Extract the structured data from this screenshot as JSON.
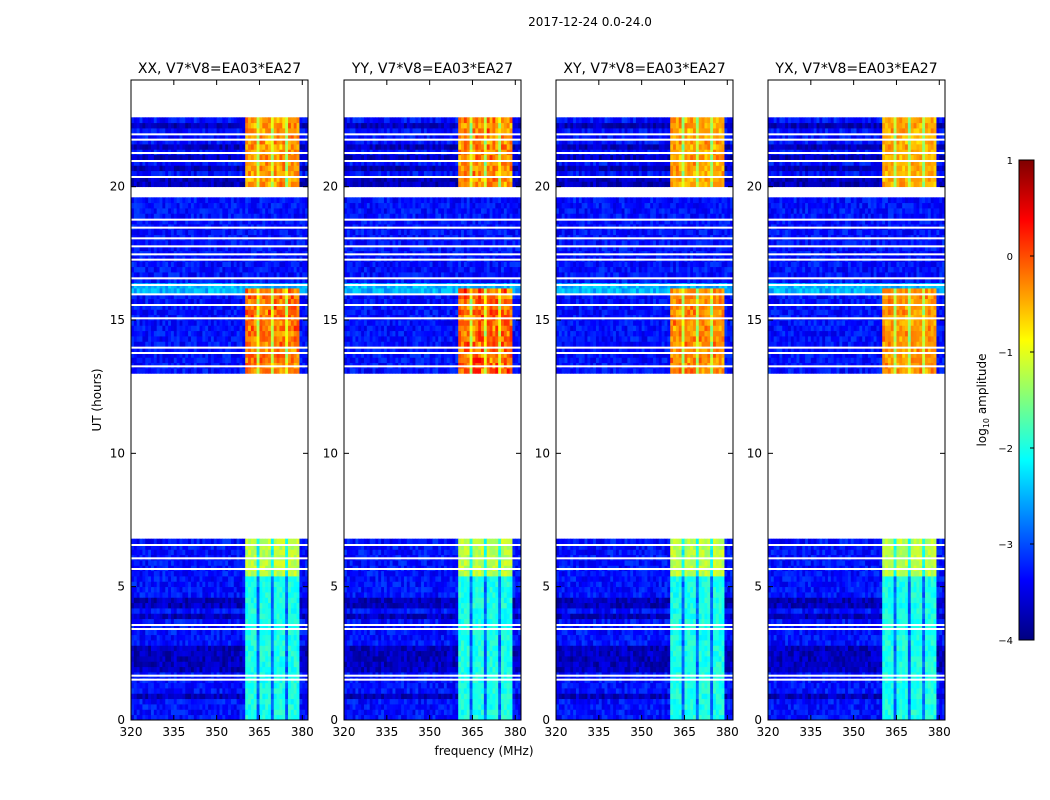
{
  "chart_data": {
    "type": "heatmap",
    "suptitle": "2017-12-24 0.0-24.0",
    "xlabel": "frequency (MHz)",
    "ylabel": "UT (hours)",
    "xlim": [
      320,
      382
    ],
    "ylim": [
      0,
      24
    ],
    "xticks": [
      320,
      335,
      350,
      365,
      380
    ],
    "yticks": [
      0,
      5,
      10,
      15,
      20
    ],
    "colorbar": {
      "label_main": "log",
      "label_sub": "10",
      "label_rest": " amplitude",
      "range": [
        -4,
        1
      ],
      "ticks": [
        1,
        0,
        -1,
        -2,
        -3,
        -4
      ],
      "stops": [
        "#00007f",
        "#0000ff",
        "#007fff",
        "#00ffff",
        "#7fff7f",
        "#ffff00",
        "#ff7f00",
        "#ff0000",
        "#7f0000"
      ]
    },
    "background_log_amplitude": -3.3,
    "data_gaps_hours": [
      [
        6.9,
        13.0
      ],
      [
        19.55,
        19.9
      ],
      [
        22.6,
        24.0
      ]
    ],
    "bright_band_mhz": [
      360,
      379
    ],
    "rfi_bursts": [
      {
        "ut": [
          13.0,
          16.1
        ],
        "log_amplitude": -0.5
      },
      {
        "ut": [
          19.9,
          22.6
        ],
        "log_amplitude": -0.6
      },
      {
        "ut": [
          5.5,
          6.9
        ],
        "log_amplitude": -1.2
      },
      {
        "ut": [
          0.0,
          5.5
        ],
        "log_amplitude": -2.0
      }
    ],
    "panels": [
      {
        "title": "XX, V7*V8=EA03*EA27",
        "peak_log_amplitude": 0.1
      },
      {
        "title": "YY, V7*V8=EA03*EA27",
        "peak_log_amplitude": 0.3
      },
      {
        "title": "XY, V7*V8=EA03*EA27",
        "peak_log_amplitude": -0.1
      },
      {
        "title": "YX, V7*V8=EA03*EA27",
        "peak_log_amplitude": -0.2
      }
    ]
  }
}
